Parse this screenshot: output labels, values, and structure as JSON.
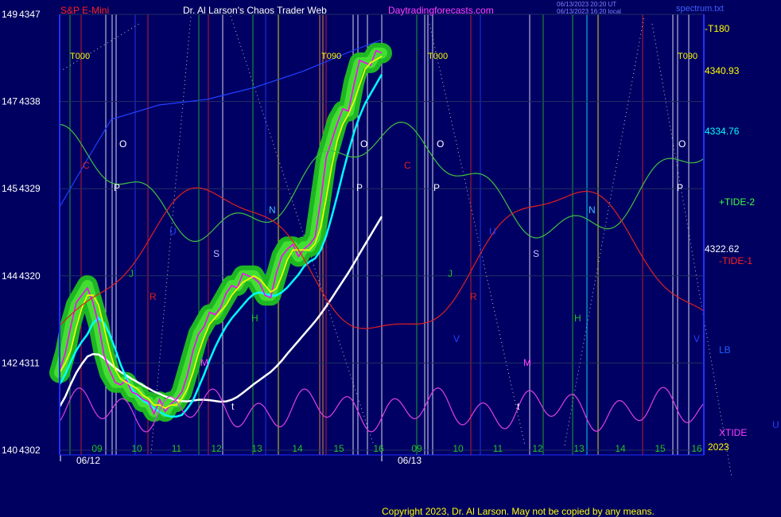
{
  "header": {
    "symbol": "S&P E-Mini",
    "title": "Dr. Al Larson's Chaos Trader Web",
    "site": "Daytradingforecasts.com",
    "stamp1": "06/13/2023 20:20 UT",
    "stamp2": "06/13/2023 16:20 local",
    "file": "spectrum.txt"
  },
  "footer": {
    "copyright": "Copyright 2023, Dr. Al Larson. May not be copied by any means."
  },
  "chart_data": {
    "type": "line",
    "y_axis_left": [
      {
        "a": "149",
        "b": "4347"
      },
      {
        "a": "147",
        "b": "4338"
      },
      {
        "a": "145",
        "b": "4329"
      },
      {
        "a": "144",
        "b": "4320"
      },
      {
        "a": "142",
        "b": "4311"
      },
      {
        "a": "140",
        "b": "4302"
      }
    ],
    "ylim": [
      4302,
      4347
    ],
    "hour_labels": [
      "09",
      "10",
      "11",
      "12",
      "13",
      "14",
      "15",
      "16",
      "09",
      "10",
      "11",
      "12",
      "13",
      "14",
      "15",
      "16"
    ],
    "date_labels": [
      "06/12",
      "06/13"
    ],
    "year_label": "2023",
    "right_labels": {
      "t180": "-T180",
      "p1": "4340.93",
      "p2": "4334.76",
      "tide2": "+TIDE-2",
      "p3": "4322.62",
      "tide1": "-TIDE-1",
      "lb": "LB",
      "xtide": "XTIDE",
      "u": "U"
    },
    "time_markers": [
      "T000",
      "T090",
      "T000",
      "T090"
    ],
    "planet_letters": [
      "O",
      "P",
      "C",
      "U",
      "N",
      "S",
      "J",
      "R",
      "H",
      "M",
      "t",
      "O",
      "P",
      "C",
      "U",
      "N",
      "S",
      "J",
      "R",
      "H",
      "M",
      "t",
      "V",
      "V"
    ],
    "series": [
      {
        "role": "price",
        "color": "#ff00ff",
        "values": [
          4310,
          4312,
          4315,
          4317,
          4318,
          4319,
          4317,
          4315,
          4312,
          4310,
          4309,
          4309,
          4309,
          4308,
          4308,
          4307,
          4307,
          4306,
          4307,
          4306,
          4307,
          4307,
          4308,
          4310,
          4312,
          4314,
          4315,
          4316,
          4316,
          4317,
          4318,
          4319,
          4319,
          4320,
          4320,
          4320,
          4319,
          4318,
          4318,
          4320,
          4322,
          4323,
          4323,
          4322,
          4323,
          4323,
          4324,
          4328,
          4332,
          4334,
          4336,
          4337,
          4337,
          4340,
          4342,
          4342,
          4342,
          4343,
          4343
        ]
      },
      {
        "role": "smooth-yellow",
        "color": "#ffff00"
      },
      {
        "role": "ma-cyan",
        "color": "#00ffff"
      },
      {
        "role": "ma-white",
        "color": "#ffffff"
      },
      {
        "role": "ma-blue",
        "color": "#2040ff"
      },
      {
        "role": "tide-2",
        "color": "#40c040"
      },
      {
        "role": "tide-1",
        "color": "#e02020"
      },
      {
        "role": "xtide",
        "color": "#e040e0"
      }
    ]
  }
}
